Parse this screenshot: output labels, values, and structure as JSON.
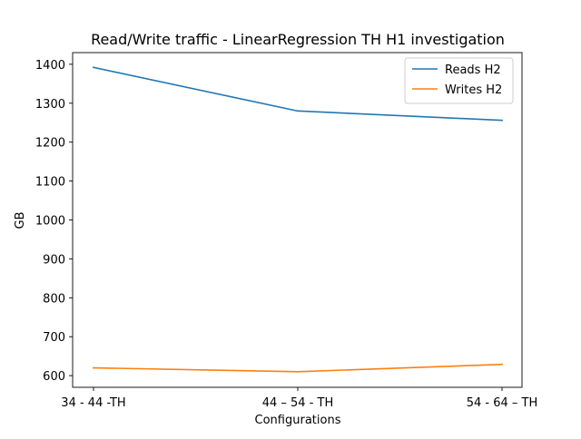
{
  "chart_data": {
    "type": "line",
    "title": "Read/Write traffic - LinearRegression TH H1 investigation",
    "xlabel": "Configurations",
    "ylabel": "GB",
    "categories": [
      "34 - 44 -TH",
      "44 – 54 - TH",
      "54 - 64 – TH"
    ],
    "ylim": [
      570,
      1430
    ],
    "yticks": [
      600,
      700,
      800,
      900,
      1000,
      1100,
      1200,
      1300,
      1400
    ],
    "grid": false,
    "legend_position": "top-right",
    "series": [
      {
        "name": "Reads H2",
        "color": "#1f77b4",
        "values": [
          1392,
          1280,
          1256
        ]
      },
      {
        "name": "Writes H2",
        "color": "#ff7f0e",
        "values": [
          620,
          610,
          629
        ]
      }
    ]
  }
}
